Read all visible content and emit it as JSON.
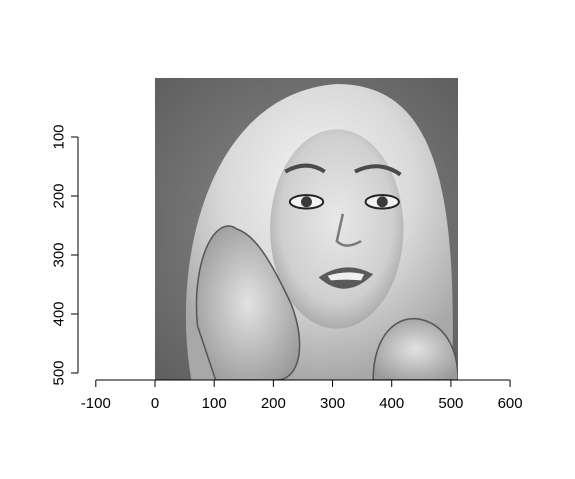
{
  "chart_data": {
    "type": "image",
    "description_of_raster": "",
    "xlim": [
      -100,
      600
    ],
    "ylim": [
      500,
      100
    ],
    "image_extent_x": [
      0,
      512
    ],
    "image_extent_y": [
      0,
      512
    ],
    "x_ticks": [
      -100,
      0,
      100,
      200,
      300,
      400,
      500,
      600
    ],
    "x_tick_labels": [
      "-100",
      "0",
      "100",
      "200",
      "300",
      "400",
      "500",
      "600"
    ],
    "y_ticks": [
      100,
      200,
      300,
      400,
      500
    ],
    "y_tick_labels": [
      "100",
      "200",
      "300",
      "400",
      "500"
    ],
    "title": "",
    "xlabel": "",
    "ylabel": "",
    "grid": false,
    "colormap": "grayscale"
  }
}
